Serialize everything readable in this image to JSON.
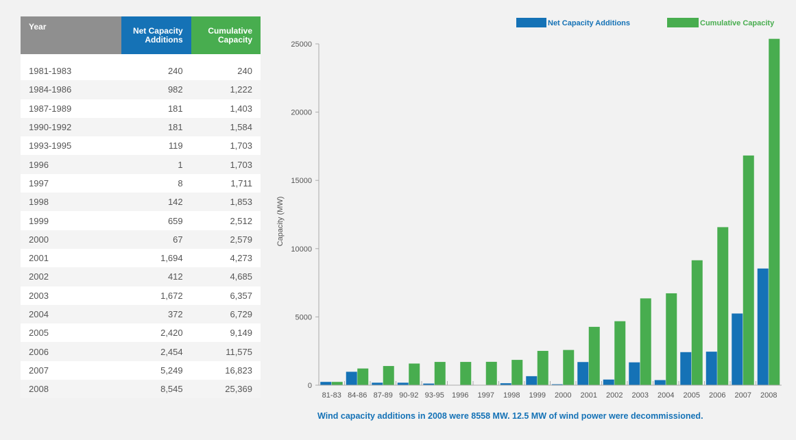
{
  "table": {
    "headers": {
      "year": "Year",
      "net": "Net Capacity Additions",
      "cumulative": "Cumulative Capacity"
    },
    "rows": [
      {
        "year": "1981-1983",
        "net": "240",
        "cumulative": "240"
      },
      {
        "year": "1984-1986",
        "net": "982",
        "cumulative": "1,222"
      },
      {
        "year": "1987-1989",
        "net": "181",
        "cumulative": "1,403"
      },
      {
        "year": "1990-1992",
        "net": "181",
        "cumulative": "1,584"
      },
      {
        "year": "1993-1995",
        "net": "119",
        "cumulative": "1,703"
      },
      {
        "year": "1996",
        "net": "1",
        "cumulative": "1,703"
      },
      {
        "year": "1997",
        "net": "8",
        "cumulative": "1,711"
      },
      {
        "year": "1998",
        "net": "142",
        "cumulative": "1,853"
      },
      {
        "year": "1999",
        "net": "659",
        "cumulative": "2,512"
      },
      {
        "year": "2000",
        "net": "67",
        "cumulative": "2,579"
      },
      {
        "year": "2001",
        "net": "1,694",
        "cumulative": "4,273"
      },
      {
        "year": "2002",
        "net": "412",
        "cumulative": "4,685"
      },
      {
        "year": "2003",
        "net": "1,672",
        "cumulative": "6,357"
      },
      {
        "year": "2004",
        "net": "372",
        "cumulative": "6,729"
      },
      {
        "year": "2005",
        "net": "2,420",
        "cumulative": "9,149"
      },
      {
        "year": "2006",
        "net": "2,454",
        "cumulative": "11,575"
      },
      {
        "year": "2007",
        "net": "5,249",
        "cumulative": "16,823"
      },
      {
        "year": "2008",
        "net": "8,545",
        "cumulative": "25,369"
      }
    ]
  },
  "colors": {
    "net": "#1572b6",
    "cumulative": "#48ad4f",
    "year_header": "#8f8f8f",
    "caption": "#1572b6"
  },
  "chart_data": {
    "type": "bar",
    "categories": [
      "81-83",
      "84-86",
      "87-89",
      "90-92",
      "93-95",
      "1996",
      "1997",
      "1998",
      "1999",
      "2000",
      "2001",
      "2002",
      "2003",
      "2004",
      "2005",
      "2006",
      "2007",
      "2008"
    ],
    "series": [
      {
        "name": "Net Capacity Additions",
        "values": [
          240,
          982,
          181,
          181,
          119,
          1,
          8,
          142,
          659,
          67,
          1694,
          412,
          1672,
          372,
          2420,
          2454,
          5249,
          8545
        ]
      },
      {
        "name": "Cumulative Capacity",
        "values": [
          240,
          1222,
          1403,
          1584,
          1703,
          1703,
          1711,
          1853,
          2512,
          2579,
          4273,
          4685,
          6357,
          6729,
          9149,
          11575,
          16823,
          25369
        ]
      }
    ],
    "ylabel": "Capacity (MW)",
    "xlabel": "",
    "ylim": [
      0,
      25000
    ],
    "yticks": [
      0,
      5000,
      10000,
      15000,
      20000,
      25000
    ],
    "legend": "top-right",
    "grid": false
  },
  "caption": "Wind capacity additions in 2008 were 8558 MW.  12.5 MW of wind power were decommissioned."
}
